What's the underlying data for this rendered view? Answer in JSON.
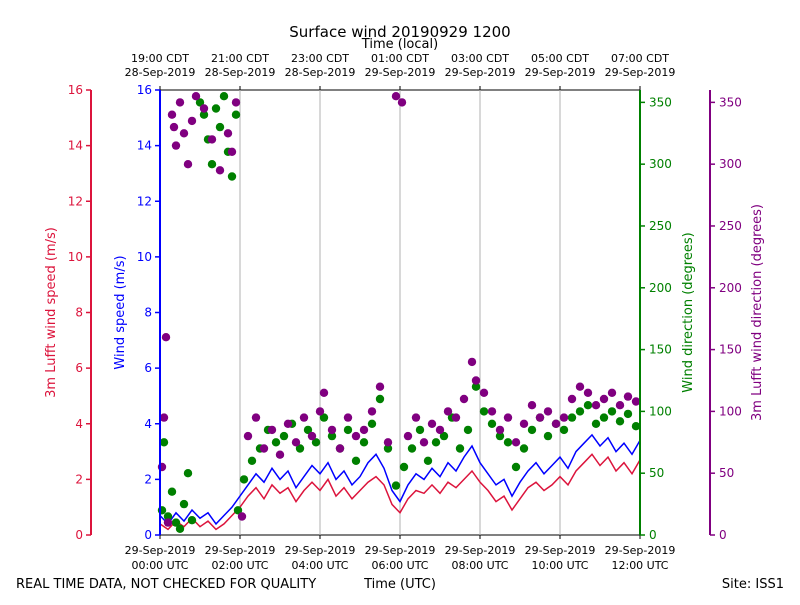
{
  "chart_data": {
    "type": "scatter",
    "title": "Surface wind 20190929 1200",
    "top_axis_label": "Time (local)",
    "bottom_axis_label": "Time (UTC)",
    "footer_left": "REAL TIME DATA, NOT CHECKED FOR QUALITY",
    "footer_right": "Site: ISS1",
    "x_range_hours": [
      0,
      12
    ],
    "utc_ticks": [
      {
        "hour": 0,
        "line1": "29-Sep-2019",
        "line2": "00:00 UTC"
      },
      {
        "hour": 2,
        "line1": "29-Sep-2019",
        "line2": "02:00 UTC"
      },
      {
        "hour": 4,
        "line1": "29-Sep-2019",
        "line2": "04:00 UTC"
      },
      {
        "hour": 6,
        "line1": "29-Sep-2019",
        "line2": "06:00 UTC"
      },
      {
        "hour": 8,
        "line1": "29-Sep-2019",
        "line2": "08:00 UTC"
      },
      {
        "hour": 10,
        "line1": "29-Sep-2019",
        "line2": "10:00 UTC"
      },
      {
        "hour": 12,
        "line1": "29-Sep-2019",
        "line2": "12:00 UTC"
      }
    ],
    "local_ticks": [
      {
        "hour": 0,
        "line1": "19:00 CDT",
        "line2": "28-Sep-2019"
      },
      {
        "hour": 2,
        "line1": "21:00 CDT",
        "line2": "28-Sep-2019"
      },
      {
        "hour": 4,
        "line1": "23:00 CDT",
        "line2": "28-Sep-2019"
      },
      {
        "hour": 6,
        "line1": "01:00 CDT",
        "line2": "29-Sep-2019"
      },
      {
        "hour": 8,
        "line1": "03:00 CDT",
        "line2": "29-Sep-2019"
      },
      {
        "hour": 10,
        "line1": "05:00 CDT",
        "line2": "29-Sep-2019"
      },
      {
        "hour": 12,
        "line1": "07:00 CDT",
        "line2": "29-Sep-2019"
      }
    ],
    "axes": {
      "lufft_speed": {
        "label": "3m Lufft wind speed (m/s)",
        "range": [
          0,
          16
        ],
        "ticks": [
          0,
          2,
          4,
          6,
          8,
          10,
          12,
          14,
          16
        ],
        "color": "#dc143c"
      },
      "wind_speed": {
        "label": "Wind speed (m/s)",
        "range": [
          0,
          16
        ],
        "ticks": [
          0,
          2,
          4,
          6,
          8,
          10,
          12,
          14,
          16
        ],
        "color": "#0000ff"
      },
      "wind_dir": {
        "label": "Wind direction (degrees)",
        "range": [
          0,
          360
        ],
        "ticks": [
          0,
          50,
          100,
          150,
          200,
          250,
          300,
          350
        ],
        "color": "#008000"
      },
      "lufft_dir": {
        "label": "3m Lufft wind direction (degrees)",
        "range": [
          0,
          360
        ],
        "ticks": [
          0,
          50,
          100,
          150,
          200,
          250,
          300,
          350
        ],
        "color": "#800080"
      }
    },
    "series": [
      {
        "name": "Wind speed (m/s)",
        "kind": "line",
        "axis": "wind_speed",
        "color": "#0000ff",
        "points": [
          [
            0,
            0.7
          ],
          [
            0.2,
            0.4
          ],
          [
            0.4,
            0.8
          ],
          [
            0.6,
            0.5
          ],
          [
            0.8,
            0.9
          ],
          [
            1.0,
            0.6
          ],
          [
            1.2,
            0.8
          ],
          [
            1.4,
            0.4
          ],
          [
            1.6,
            0.7
          ],
          [
            1.8,
            1.0
          ],
          [
            2.0,
            1.4
          ],
          [
            2.2,
            1.8
          ],
          [
            2.4,
            2.2
          ],
          [
            2.6,
            1.9
          ],
          [
            2.8,
            2.4
          ],
          [
            3.0,
            2.0
          ],
          [
            3.2,
            2.3
          ],
          [
            3.4,
            1.7
          ],
          [
            3.6,
            2.1
          ],
          [
            3.8,
            2.5
          ],
          [
            4.0,
            2.2
          ],
          [
            4.2,
            2.6
          ],
          [
            4.4,
            2.0
          ],
          [
            4.6,
            2.3
          ],
          [
            4.8,
            1.8
          ],
          [
            5.0,
            2.1
          ],
          [
            5.2,
            2.6
          ],
          [
            5.4,
            2.9
          ],
          [
            5.6,
            2.4
          ],
          [
            5.8,
            1.6
          ],
          [
            6.0,
            1.2
          ],
          [
            6.2,
            1.8
          ],
          [
            6.4,
            2.2
          ],
          [
            6.6,
            2.0
          ],
          [
            6.8,
            2.4
          ],
          [
            7.0,
            2.1
          ],
          [
            7.2,
            2.6
          ],
          [
            7.4,
            2.3
          ],
          [
            7.6,
            2.8
          ],
          [
            7.8,
            3.2
          ],
          [
            8.0,
            2.6
          ],
          [
            8.2,
            2.2
          ],
          [
            8.4,
            1.8
          ],
          [
            8.6,
            2.0
          ],
          [
            8.8,
            1.4
          ],
          [
            9.0,
            1.9
          ],
          [
            9.2,
            2.3
          ],
          [
            9.4,
            2.6
          ],
          [
            9.6,
            2.2
          ],
          [
            9.8,
            2.5
          ],
          [
            10.0,
            2.8
          ],
          [
            10.2,
            2.4
          ],
          [
            10.4,
            3.0
          ],
          [
            10.6,
            3.3
          ],
          [
            10.8,
            3.6
          ],
          [
            11.0,
            3.2
          ],
          [
            11.2,
            3.5
          ],
          [
            11.4,
            3.0
          ],
          [
            11.6,
            3.3
          ],
          [
            11.8,
            2.9
          ],
          [
            12.0,
            3.4
          ]
        ]
      },
      {
        "name": "3m Lufft wind speed (m/s)",
        "kind": "line",
        "axis": "lufft_speed",
        "color": "#dc143c",
        "points": [
          [
            0,
            0.4
          ],
          [
            0.2,
            0.2
          ],
          [
            0.4,
            0.5
          ],
          [
            0.6,
            0.3
          ],
          [
            0.8,
            0.6
          ],
          [
            1.0,
            0.3
          ],
          [
            1.2,
            0.5
          ],
          [
            1.4,
            0.2
          ],
          [
            1.6,
            0.4
          ],
          [
            1.8,
            0.7
          ],
          [
            2.0,
            1.0
          ],
          [
            2.2,
            1.4
          ],
          [
            2.4,
            1.7
          ],
          [
            2.6,
            1.3
          ],
          [
            2.8,
            1.8
          ],
          [
            3.0,
            1.5
          ],
          [
            3.2,
            1.7
          ],
          [
            3.4,
            1.2
          ],
          [
            3.6,
            1.6
          ],
          [
            3.8,
            1.9
          ],
          [
            4.0,
            1.6
          ],
          [
            4.2,
            2.0
          ],
          [
            4.4,
            1.4
          ],
          [
            4.6,
            1.7
          ],
          [
            4.8,
            1.3
          ],
          [
            5.0,
            1.6
          ],
          [
            5.2,
            1.9
          ],
          [
            5.4,
            2.1
          ],
          [
            5.6,
            1.8
          ],
          [
            5.8,
            1.1
          ],
          [
            6.0,
            0.8
          ],
          [
            6.2,
            1.3
          ],
          [
            6.4,
            1.6
          ],
          [
            6.6,
            1.5
          ],
          [
            6.8,
            1.8
          ],
          [
            7.0,
            1.5
          ],
          [
            7.2,
            1.9
          ],
          [
            7.4,
            1.7
          ],
          [
            7.6,
            2.0
          ],
          [
            7.8,
            2.3
          ],
          [
            8.0,
            1.9
          ],
          [
            8.2,
            1.6
          ],
          [
            8.4,
            1.2
          ],
          [
            8.6,
            1.4
          ],
          [
            8.8,
            0.9
          ],
          [
            9.0,
            1.3
          ],
          [
            9.2,
            1.7
          ],
          [
            9.4,
            1.9
          ],
          [
            9.6,
            1.6
          ],
          [
            9.8,
            1.8
          ],
          [
            10.0,
            2.1
          ],
          [
            10.2,
            1.8
          ],
          [
            10.4,
            2.3
          ],
          [
            10.6,
            2.6
          ],
          [
            10.8,
            2.9
          ],
          [
            11.0,
            2.5
          ],
          [
            11.2,
            2.8
          ],
          [
            11.4,
            2.3
          ],
          [
            11.6,
            2.6
          ],
          [
            11.8,
            2.2
          ],
          [
            12.0,
            2.7
          ]
        ]
      },
      {
        "name": "Wind direction (degrees)",
        "kind": "scatter",
        "axis": "wind_dir",
        "color": "#008000",
        "points": [
          [
            0.05,
            20
          ],
          [
            0.1,
            75
          ],
          [
            0.2,
            15
          ],
          [
            0.3,
            35
          ],
          [
            0.4,
            10
          ],
          [
            0.5,
            5
          ],
          [
            0.6,
            25
          ],
          [
            0.7,
            50
          ],
          [
            0.8,
            12
          ],
          [
            1.0,
            350
          ],
          [
            1.1,
            340
          ],
          [
            1.2,
            320
          ],
          [
            1.3,
            300
          ],
          [
            1.4,
            345
          ],
          [
            1.5,
            330
          ],
          [
            1.6,
            355
          ],
          [
            1.7,
            310
          ],
          [
            1.8,
            290
          ],
          [
            1.9,
            340
          ],
          [
            1.95,
            20
          ],
          [
            2.1,
            45
          ],
          [
            2.3,
            60
          ],
          [
            2.5,
            70
          ],
          [
            2.7,
            85
          ],
          [
            2.9,
            75
          ],
          [
            3.1,
            80
          ],
          [
            3.3,
            90
          ],
          [
            3.5,
            70
          ],
          [
            3.7,
            85
          ],
          [
            3.9,
            75
          ],
          [
            4.1,
            95
          ],
          [
            4.3,
            80
          ],
          [
            4.5,
            70
          ],
          [
            4.7,
            85
          ],
          [
            4.9,
            60
          ],
          [
            5.1,
            75
          ],
          [
            5.3,
            90
          ],
          [
            5.5,
            110
          ],
          [
            5.7,
            70
          ],
          [
            5.9,
            40
          ],
          [
            6.1,
            55
          ],
          [
            6.3,
            70
          ],
          [
            6.5,
            85
          ],
          [
            6.7,
            60
          ],
          [
            6.9,
            75
          ],
          [
            7.1,
            80
          ],
          [
            7.3,
            95
          ],
          [
            7.5,
            70
          ],
          [
            7.7,
            85
          ],
          [
            7.9,
            120
          ],
          [
            8.1,
            100
          ],
          [
            8.3,
            90
          ],
          [
            8.5,
            80
          ],
          [
            8.7,
            75
          ],
          [
            8.9,
            55
          ],
          [
            9.1,
            70
          ],
          [
            9.3,
            85
          ],
          [
            9.5,
            95
          ],
          [
            9.7,
            80
          ],
          [
            9.9,
            90
          ],
          [
            10.1,
            85
          ],
          [
            10.3,
            95
          ],
          [
            10.5,
            100
          ],
          [
            10.7,
            105
          ],
          [
            10.9,
            90
          ],
          [
            11.1,
            95
          ],
          [
            11.3,
            100
          ],
          [
            11.5,
            92
          ],
          [
            11.7,
            98
          ],
          [
            11.9,
            88
          ]
        ]
      },
      {
        "name": "3m Lufft wind direction (degrees)",
        "kind": "scatter",
        "axis": "lufft_dir",
        "color": "#800080",
        "points": [
          [
            0.05,
            55
          ],
          [
            0.1,
            95
          ],
          [
            0.15,
            160
          ],
          [
            0.2,
            10
          ],
          [
            0.3,
            340
          ],
          [
            0.35,
            330
          ],
          [
            0.4,
            315
          ],
          [
            0.5,
            350
          ],
          [
            0.6,
            325
          ],
          [
            0.7,
            300
          ],
          [
            0.8,
            335
          ],
          [
            0.9,
            355
          ],
          [
            1.1,
            345
          ],
          [
            1.3,
            320
          ],
          [
            1.5,
            295
          ],
          [
            1.7,
            325
          ],
          [
            1.8,
            310
          ],
          [
            1.9,
            350
          ],
          [
            2.05,
            15
          ],
          [
            2.2,
            80
          ],
          [
            2.4,
            95
          ],
          [
            2.6,
            70
          ],
          [
            2.8,
            85
          ],
          [
            3.0,
            65
          ],
          [
            3.2,
            90
          ],
          [
            3.4,
            75
          ],
          [
            3.6,
            95
          ],
          [
            3.8,
            80
          ],
          [
            4.0,
            100
          ],
          [
            4.1,
            115
          ],
          [
            4.3,
            85
          ],
          [
            4.5,
            70
          ],
          [
            4.7,
            95
          ],
          [
            4.9,
            80
          ],
          [
            5.1,
            85
          ],
          [
            5.3,
            100
          ],
          [
            5.5,
            120
          ],
          [
            5.7,
            75
          ],
          [
            5.9,
            355
          ],
          [
            6.05,
            350
          ],
          [
            6.2,
            80
          ],
          [
            6.4,
            95
          ],
          [
            6.6,
            75
          ],
          [
            6.8,
            90
          ],
          [
            7.0,
            85
          ],
          [
            7.2,
            100
          ],
          [
            7.4,
            95
          ],
          [
            7.6,
            110
          ],
          [
            7.8,
            140
          ],
          [
            7.9,
            125
          ],
          [
            8.1,
            115
          ],
          [
            8.3,
            100
          ],
          [
            8.5,
            85
          ],
          [
            8.7,
            95
          ],
          [
            8.9,
            75
          ],
          [
            9.1,
            90
          ],
          [
            9.3,
            105
          ],
          [
            9.5,
            95
          ],
          [
            9.7,
            100
          ],
          [
            9.9,
            90
          ],
          [
            10.1,
            95
          ],
          [
            10.3,
            110
          ],
          [
            10.5,
            120
          ],
          [
            10.7,
            115
          ],
          [
            10.9,
            105
          ],
          [
            11.1,
            110
          ],
          [
            11.3,
            115
          ],
          [
            11.5,
            105
          ],
          [
            11.7,
            112
          ],
          [
            11.9,
            108
          ]
        ]
      }
    ]
  }
}
